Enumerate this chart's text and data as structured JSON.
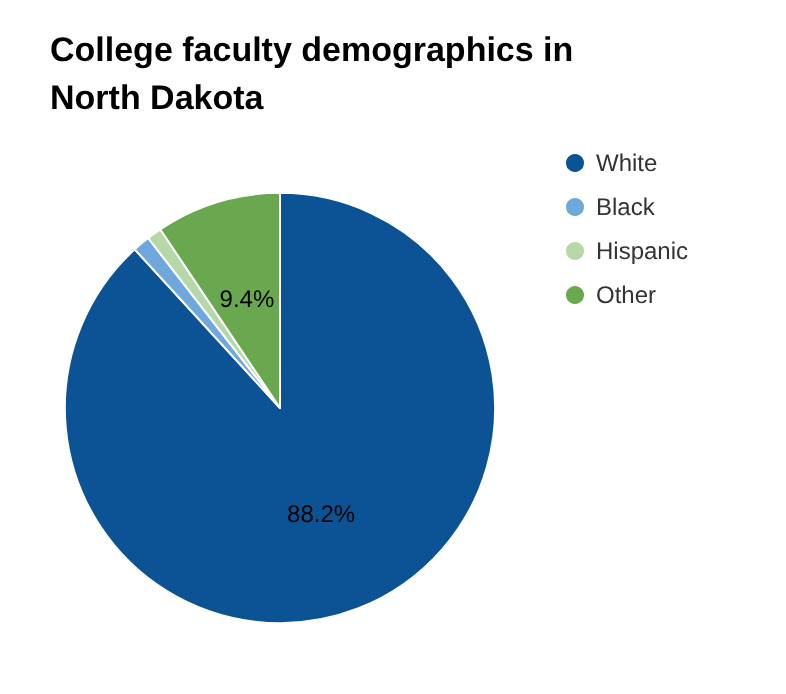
{
  "chart_data": {
    "type": "pie",
    "title": "College faculty demographics in North Dakota",
    "categories": [
      "White",
      "Black",
      "Hispanic",
      "Other"
    ],
    "values": [
      88.2,
      1.3,
      1.1,
      9.4
    ],
    "colors": [
      "#0b5394",
      "#6fa8dc",
      "#b6d7a8",
      "#6aa84f"
    ],
    "value_labels": [
      "88.2%",
      null,
      null,
      "9.4%"
    ],
    "legend": "top right"
  }
}
